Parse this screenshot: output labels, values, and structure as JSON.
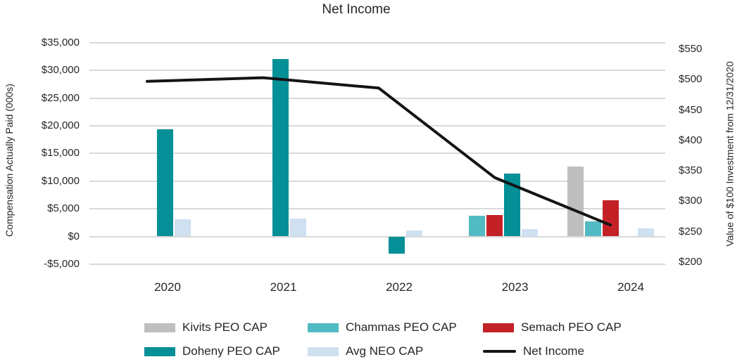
{
  "title": "Net Income",
  "axes": {
    "left": {
      "title": "Compensation Actually Paid (000s)",
      "ticks": [
        {
          "label": "$35,000",
          "value": 35000
        },
        {
          "label": "$30,000",
          "value": 30000
        },
        {
          "label": "$25,000",
          "value": 25000
        },
        {
          "label": "$20,000",
          "value": 20000
        },
        {
          "label": "$15,000",
          "value": 15000
        },
        {
          "label": "$10,000",
          "value": 10000
        },
        {
          "label": "$5,000",
          "value": 5000
        },
        {
          "label": "$0",
          "value": 0
        },
        {
          "label": "-$5,000",
          "value": -5000
        }
      ]
    },
    "right": {
      "title": "Value of $100 Investment from 12/31/2020",
      "ticks": [
        {
          "label": "$550",
          "value": 550
        },
        {
          "label": "$500",
          "value": 500
        },
        {
          "label": "$450",
          "value": 450
        },
        {
          "label": "$400",
          "value": 400
        },
        {
          "label": "$350",
          "value": 350
        },
        {
          "label": "$300",
          "value": 300
        },
        {
          "label": "$250",
          "value": 250
        },
        {
          "label": "$200",
          "value": 200
        }
      ]
    }
  },
  "legend": {
    "items": [
      {
        "label": "Kivits PEO CAP",
        "marker": "bar",
        "color": "#bfbfbf"
      },
      {
        "label": "Chammas PEO CAP",
        "marker": "bar",
        "color": "#52bac2"
      },
      {
        "label": "Semach PEO CAP",
        "marker": "bar",
        "color": "#c42127"
      },
      {
        "label": "Doheny PEO CAP",
        "marker": "bar",
        "color": "#058f97"
      },
      {
        "label": "Avg NEO CAP",
        "marker": "bar",
        "color": "#cfe0f1"
      },
      {
        "label": "Net Income",
        "marker": "line",
        "color": "#141414"
      }
    ]
  },
  "chart_data": {
    "type": "bar+line",
    "title": "Net Income",
    "categories": [
      "2020",
      "2021",
      "2022",
      "2023",
      "2024"
    ],
    "left_axis_label": "Compensation Actually Paid (000s)",
    "right_axis_label": "Value of $100 Investment from 12/31/2020",
    "left_ylim": [
      -5000,
      35000
    ],
    "right_ylim": [
      200,
      550
    ],
    "grid": true,
    "legend_position": "bottom",
    "series": [
      {
        "name": "Kivits PEO CAP",
        "type": "bar",
        "axis": "left",
        "color": "#bfbfbf",
        "values": [
          0,
          0,
          0,
          0,
          12600
        ]
      },
      {
        "name": "Chammas PEO CAP",
        "type": "bar",
        "axis": "left",
        "color": "#52bac2",
        "values": [
          0,
          0,
          0,
          3800,
          2700
        ]
      },
      {
        "name": "Semach PEO CAP",
        "type": "bar",
        "axis": "left",
        "color": "#c42127",
        "values": [
          0,
          0,
          0,
          3900,
          6500
        ]
      },
      {
        "name": "Doheny PEO CAP",
        "type": "bar",
        "axis": "left",
        "color": "#058f97",
        "values": [
          19300,
          32000,
          -3100,
          11400,
          0
        ]
      },
      {
        "name": "Avg NEO CAP",
        "type": "bar",
        "axis": "left",
        "color": "#cfe0f1",
        "values": [
          3100,
          3300,
          1100,
          1400,
          1500
        ]
      },
      {
        "name": "Net Income",
        "type": "line",
        "axis": "right",
        "color": "#141414",
        "values": [
          497,
          503,
          486,
          339,
          261
        ]
      }
    ]
  }
}
